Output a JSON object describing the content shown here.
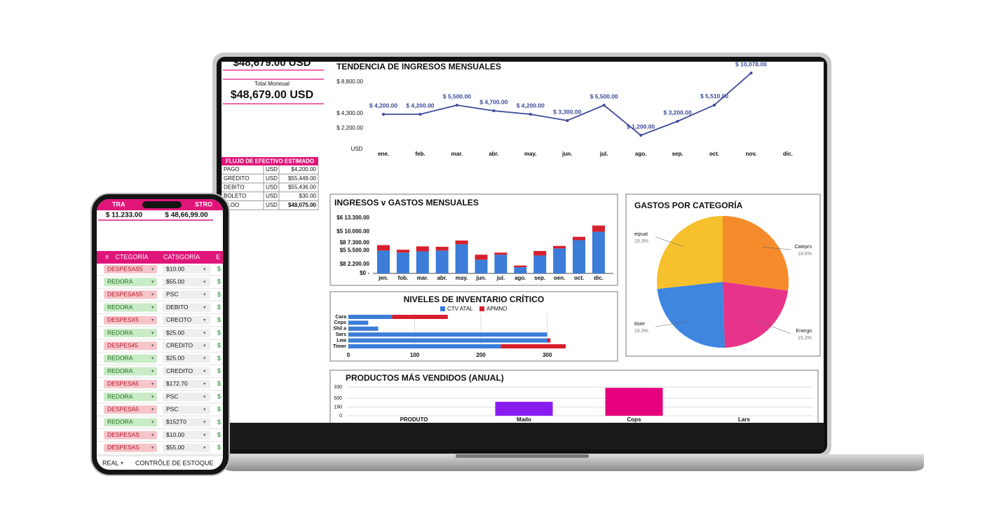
{
  "summary": {
    "top_total": "$48,679.00 USD",
    "total_label": "Total Moneual",
    "total": "$48,679.00 USD"
  },
  "cash_flow": {
    "title": "FLUJO DE EFECTIVO ESTIMADO",
    "rows": [
      [
        "PAGO",
        "USD",
        "$4,200.00"
      ],
      [
        "GRÉDITO",
        "USD",
        "$55,449.00"
      ],
      [
        "DEBITO",
        "USD",
        "$55,436.00"
      ],
      [
        "BOLETO",
        "USD",
        "$30.00"
      ],
      [
        "ALOO",
        "USD",
        "$48,075.00"
      ]
    ]
  },
  "chart_data": [
    {
      "type": "line",
      "title": "TENDENCIA DE INGRESOS MENSUALES",
      "unit_label": "USD",
      "categories": [
        "ene.",
        "feb.",
        "mar.",
        "abr.",
        "may.",
        "jun.",
        "jul.",
        "ago.",
        "sep.",
        "oct.",
        "nov.",
        "dic."
      ],
      "values": [
        4200,
        4200,
        5500,
        4700,
        4200,
        3300,
        5500,
        1200,
        3200,
        5510,
        10078,
        null
      ],
      "value_labels": [
        "$ 4,200.00",
        "$ 4,200.00",
        "$ 5,500.00",
        "$ 4,700.00",
        "$ 4,200.00",
        "$ 3,300.00",
        "$ 5,500.00",
        "$ 1,200.00",
        "$ 3,200.00",
        "$ 5,510.00",
        "$ 10,078.00",
        null
      ],
      "color": "#3d4a9a",
      "ylim": [
        0,
        11000
      ],
      "yticks": [
        {
          "value": 2200,
          "label": "$ 2,200.00"
        },
        {
          "value": 4300,
          "label": "$ 4,300.00"
        },
        {
          "value": 8800,
          "label": "$ 8,800.00"
        }
      ]
    },
    {
      "type": "bar",
      "stacked": true,
      "title": "INGRESOS v GASTOS MENSUALES",
      "categories": [
        "jen.",
        "fob.",
        "mar.",
        "abr.",
        "may.",
        "jun.",
        "jul.",
        "ago.",
        "sep.",
        "oen.",
        "oct.",
        "dic."
      ],
      "series": [
        {
          "color": "#3b7dd8",
          "values": [
            5500,
            5000,
            5300,
            5500,
            7000,
            3300,
            4500,
            1500,
            4300,
            6000,
            8000,
            10000
          ]
        },
        {
          "color": "#d7202e",
          "values": [
            1300,
            700,
            1200,
            900,
            900,
            1200,
            500,
            400,
            1100,
            600,
            800,
            1500
          ]
        }
      ],
      "ylim": [
        0,
        13300
      ],
      "yticks": [
        {
          "value": 0,
          "label": "$0 -"
        },
        {
          "value": 2200,
          "label": "$8 2.200.00"
        },
        {
          "value": 5500,
          "label": "$5 5.500.00"
        },
        {
          "value": 7300,
          "label": "$8 7.300.00"
        },
        {
          "value": 10000,
          "label": "$5 10.000.00"
        },
        {
          "value": 13300,
          "label": "$6 13.300.00"
        }
      ]
    },
    {
      "type": "hbar",
      "stacked": true,
      "title": "NIVELES DE INVENTARIO CRÍTICO",
      "categories": [
        "Cara",
        "Cops",
        "Shil a",
        "Sars",
        "Lwa",
        "Timer"
      ],
      "series": [
        {
          "name": "CTV ATAL",
          "color": "#3b7dd8",
          "values": [
            66,
            30,
            45,
            300,
            300,
            230
          ]
        },
        {
          "name": "APMNO",
          "color": "#d7202e",
          "values": [
            84,
            0,
            0,
            0,
            5,
            98
          ]
        }
      ],
      "xlim": [
        0,
        330
      ],
      "xticks": [
        0,
        100,
        200,
        300
      ]
    },
    {
      "type": "pie",
      "title": "GASTOS POR CATEGORÍA",
      "categories": [
        "Cateprs",
        "Energo",
        "tloier",
        "eipuat"
      ],
      "values": [
        18.6,
        15.3,
        16.3,
        18.3
      ],
      "value_labels": [
        "18.6%",
        "15,3%",
        "16.3%",
        "18.3%"
      ],
      "colors": [
        "#f68b2c",
        "#e8338a",
        "#3f86e0",
        "#f7c12d"
      ]
    },
    {
      "type": "bar",
      "title": "PRODUCTOS MÁS VENDIDOS (ANUAL)",
      "categories": [
        "PRODUTO",
        "Mado",
        "Cops",
        "Lars"
      ],
      "values": [
        0,
        160,
        320,
        0
      ],
      "colors": [
        "#8a1cf0",
        "#8a1cf0",
        "#e6007e",
        "#8a1cf0"
      ],
      "ylim": [
        0,
        330
      ],
      "yticks": [
        0,
        {
          "value": 100,
          "label": "190"
        },
        {
          "value": 200,
          "label": "500"
        },
        330
      ]
    }
  ],
  "phone": {
    "header": [
      "TRA",
      "STRO"
    ],
    "totals": [
      "$ 11.233.00",
      "$ 48,66,99.00"
    ],
    "columns": [
      "CTEGORÍA",
      "CATSGORÍA",
      "E"
    ],
    "rows": [
      {
        "category": "DESPESAS5",
        "color": "#f6c5c9",
        "value": "$10.00",
        "amount": "$"
      },
      {
        "category": "REDORA",
        "color": "#c9ecc6",
        "value": "$55.00",
        "amount": "$"
      },
      {
        "category": "DESPESAS5",
        "color": "#f6c5c9",
        "value": "PSC",
        "amount": "$"
      },
      {
        "category": "REDORA",
        "color": "#c9ecc6",
        "value": "DEBITO",
        "amount": "$"
      },
      {
        "category": "DESPESX5",
        "color": "#f6c5c9",
        "value": "CREOTO",
        "amount": "$"
      },
      {
        "category": "REDORA",
        "color": "#c9ecc6",
        "value": "$25.00",
        "amount": "$"
      },
      {
        "category": "DESPES45",
        "color": "#f6c5c9",
        "value": "CREDITO",
        "amount": "$"
      },
      {
        "category": "REDORA",
        "color": "#c9ecc6",
        "value": "$25.00",
        "amount": "$"
      },
      {
        "category": "REDORA",
        "color": "#c9ecc6",
        "value": "CREDITO",
        "amount": "$"
      },
      {
        "category": "DESPESA5",
        "color": "#f6c5c9",
        "value": "$172.70",
        "amount": "$"
      },
      {
        "category": "REDORA",
        "color": "#c9ecc6",
        "value": "PSC",
        "amount": "$"
      },
      {
        "category": "DESPESA5",
        "color": "#f6c5c9",
        "value": "PSC",
        "amount": "$"
      },
      {
        "category": "REDORA",
        "color": "#c9ecc6",
        "value": "$152T0",
        "amount": "$"
      },
      {
        "category": "DESPESAS",
        "color": "#f6c5c9",
        "value": "$10.00",
        "amount": "$"
      },
      {
        "category": "DESPESAS",
        "color": "#f6c5c9",
        "value": "$55.00",
        "amount": "$"
      }
    ],
    "tabs": [
      "REAL",
      "CONTRÔLE DE ESTOQUE"
    ]
  }
}
